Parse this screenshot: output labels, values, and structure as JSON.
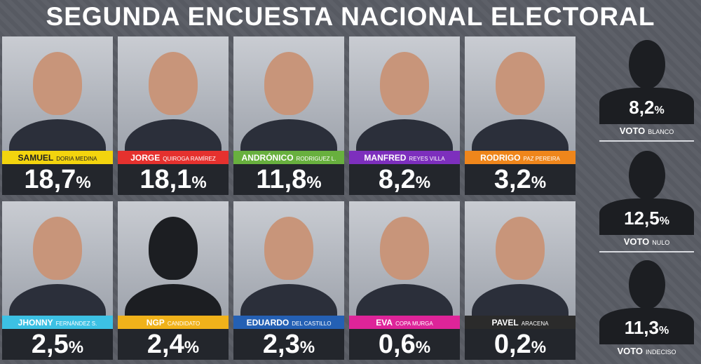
{
  "header": {
    "title": "SEGUNDA ENCUESTA NACIONAL ELECTORAL"
  },
  "candidates": [
    {
      "first": "SAMUEL",
      "last": "DORIA MEDINA",
      "value": "18,7",
      "unit": "%",
      "color": "#f3d40e",
      "text_color": "#222"
    },
    {
      "first": "JORGE",
      "last": "QUIROGA RAMÍREZ",
      "value": "18,1",
      "unit": "%",
      "color": "#e5312e",
      "text_color": "#fff"
    },
    {
      "first": "ANDRÓNICO",
      "last": "RODRIGUEZ L.",
      "value": "11,8",
      "unit": "%",
      "color": "#68b03e",
      "text_color": "#fff"
    },
    {
      "first": "MANFRED",
      "last": "REYES VILLA",
      "value": "8,2",
      "unit": "%",
      "color": "#7d2fbd",
      "text_color": "#fff"
    },
    {
      "first": "RODRIGO",
      "last": "PAZ PEREIRA",
      "value": "3,2",
      "unit": "%",
      "color": "#ef861b",
      "text_color": "#fff"
    },
    {
      "first": "JHONNY",
      "last": "FERNÁNDEZ S.",
      "value": "2,5",
      "unit": "%",
      "color": "#3cc1e4",
      "text_color": "#fff"
    },
    {
      "first": "NGP",
      "last": "CANDIDATO",
      "value": "2,4",
      "unit": "%",
      "color": "#f0b21a",
      "text_color": "#fff"
    },
    {
      "first": "EDUARDO",
      "last": "DEL CASTILLO",
      "value": "2,3",
      "unit": "%",
      "color": "#2460b4",
      "text_color": "#fff"
    },
    {
      "first": "EVA",
      "last": "COPA MURGA",
      "value": "0,6",
      "unit": "%",
      "color": "#de2499",
      "text_color": "#fff"
    },
    {
      "first": "PAVEL",
      "last": "ARACENA",
      "value": "0,2",
      "unit": "%",
      "color": "#2b2b2b",
      "text_color": "#fff"
    }
  ],
  "votes": [
    {
      "first": "VOTO",
      "last": "BLANCO",
      "value": "8,2",
      "unit": "%"
    },
    {
      "first": "VOTO",
      "last": "NULO",
      "value": "12,5",
      "unit": "%"
    },
    {
      "first": "VOTO",
      "last": "INDECISO",
      "value": "11,3",
      "unit": "%"
    }
  ]
}
